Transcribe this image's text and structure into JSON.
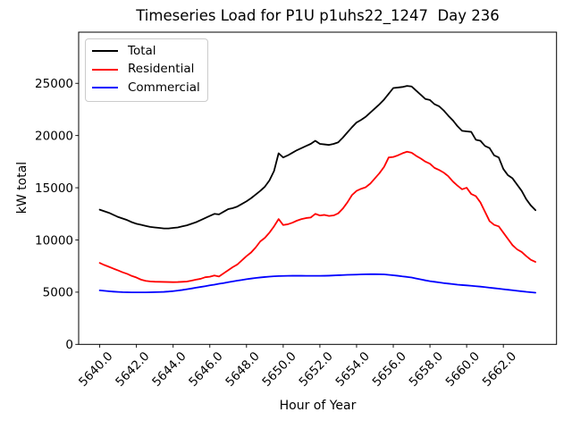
{
  "title": "Timeseries Load for P1U p1uhs22_1247  Day 236",
  "chart_data": {
    "type": "line",
    "title": "Timeseries Load for P1U p1uhs22_1247  Day 236",
    "xlabel": "Hour of Year",
    "ylabel": "kW total",
    "xlim": [
      5638.85,
      5664.9
    ],
    "ylim": [
      0,
      29900
    ],
    "grid": false,
    "legend_position": "upper left",
    "x_tick_values": [
      5640,
      5642,
      5644,
      5646,
      5648,
      5650,
      5652,
      5654,
      5656,
      5658,
      5660,
      5662
    ],
    "x_tick_labels": [
      "5640.0",
      "5642.0",
      "5644.0",
      "5646.0",
      "5648.0",
      "5650.0",
      "5652.0",
      "5654.0",
      "5656.0",
      "5658.0",
      "5660.0",
      "5662.0"
    ],
    "y_tick_values": [
      0,
      5000,
      10000,
      15000,
      20000,
      25000
    ],
    "y_tick_labels": [
      "0",
      "5000",
      "10000",
      "15000",
      "20000",
      "25000"
    ],
    "x_start": 5640.0,
    "x_step": 0.25,
    "series": [
      {
        "name": "Total",
        "color": "#000000",
        "values": [
          12900,
          12750,
          12600,
          12400,
          12200,
          12050,
          11900,
          11700,
          11550,
          11450,
          11350,
          11250,
          11200,
          11150,
          11100,
          11100,
          11150,
          11200,
          11300,
          11400,
          11550,
          11700,
          11900,
          12100,
          12300,
          12500,
          12450,
          12700,
          12950,
          13050,
          13200,
          13450,
          13700,
          14000,
          14350,
          14700,
          15100,
          15700,
          16600,
          18300,
          17900,
          18100,
          18350,
          18600,
          18800,
          19000,
          19200,
          19500,
          19200,
          19150,
          19100,
          19200,
          19350,
          19800,
          20300,
          20800,
          21250,
          21500,
          21800,
          22200,
          22600,
          23000,
          23450,
          24000,
          24550,
          24600,
          24650,
          24750,
          24700,
          24300,
          23900,
          23500,
          23400,
          23000,
          22800,
          22400,
          21900,
          21450,
          20900,
          20450,
          20400,
          20350,
          19600,
          19500,
          19000,
          18800,
          18100,
          17900,
          16800,
          16200,
          15900,
          15300,
          14700,
          13900,
          13300,
          12850
        ]
      },
      {
        "name": "Residential",
        "color": "#ff0000",
        "values": [
          7800,
          7600,
          7430,
          7250,
          7080,
          6900,
          6750,
          6550,
          6400,
          6200,
          6080,
          6030,
          6000,
          5990,
          5980,
          5970,
          5960,
          5970,
          5990,
          6020,
          6100,
          6200,
          6280,
          6430,
          6480,
          6600,
          6500,
          6800,
          7100,
          7400,
          7650,
          8050,
          8450,
          8800,
          9280,
          9860,
          10200,
          10700,
          11300,
          12000,
          11430,
          11500,
          11650,
          11850,
          12000,
          12100,
          12150,
          12500,
          12340,
          12400,
          12300,
          12350,
          12550,
          13000,
          13600,
          14300,
          14700,
          14900,
          15050,
          15400,
          15900,
          16400,
          17000,
          17900,
          17950,
          18100,
          18300,
          18450,
          18350,
          18050,
          17800,
          17500,
          17300,
          16900,
          16700,
          16450,
          16100,
          15600,
          15200,
          14850,
          15000,
          14400,
          14200,
          13600,
          12700,
          11800,
          11450,
          11300,
          10700,
          10100,
          9500,
          9100,
          8850,
          8450,
          8100,
          7900
        ]
      },
      {
        "name": "Commercial",
        "color": "#0000ff",
        "values": [
          5170,
          5130,
          5090,
          5050,
          5020,
          5000,
          4990,
          4980,
          4980,
          4980,
          4980,
          4990,
          5000,
          5010,
          5030,
          5060,
          5100,
          5150,
          5210,
          5280,
          5350,
          5430,
          5500,
          5570,
          5650,
          5720,
          5800,
          5870,
          5950,
          6030,
          6100,
          6170,
          6240,
          6300,
          6360,
          6410,
          6450,
          6490,
          6520,
          6540,
          6550,
          6560,
          6570,
          6570,
          6570,
          6560,
          6560,
          6560,
          6560,
          6570,
          6580,
          6600,
          6620,
          6640,
          6660,
          6670,
          6680,
          6700,
          6710,
          6720,
          6720,
          6710,
          6700,
          6660,
          6620,
          6570,
          6510,
          6460,
          6400,
          6310,
          6220,
          6130,
          6050,
          5990,
          5930,
          5870,
          5820,
          5770,
          5720,
          5680,
          5650,
          5610,
          5570,
          5530,
          5480,
          5430,
          5380,
          5330,
          5280,
          5230,
          5180,
          5130,
          5080,
          5030,
          4990,
          4950
        ]
      }
    ]
  }
}
